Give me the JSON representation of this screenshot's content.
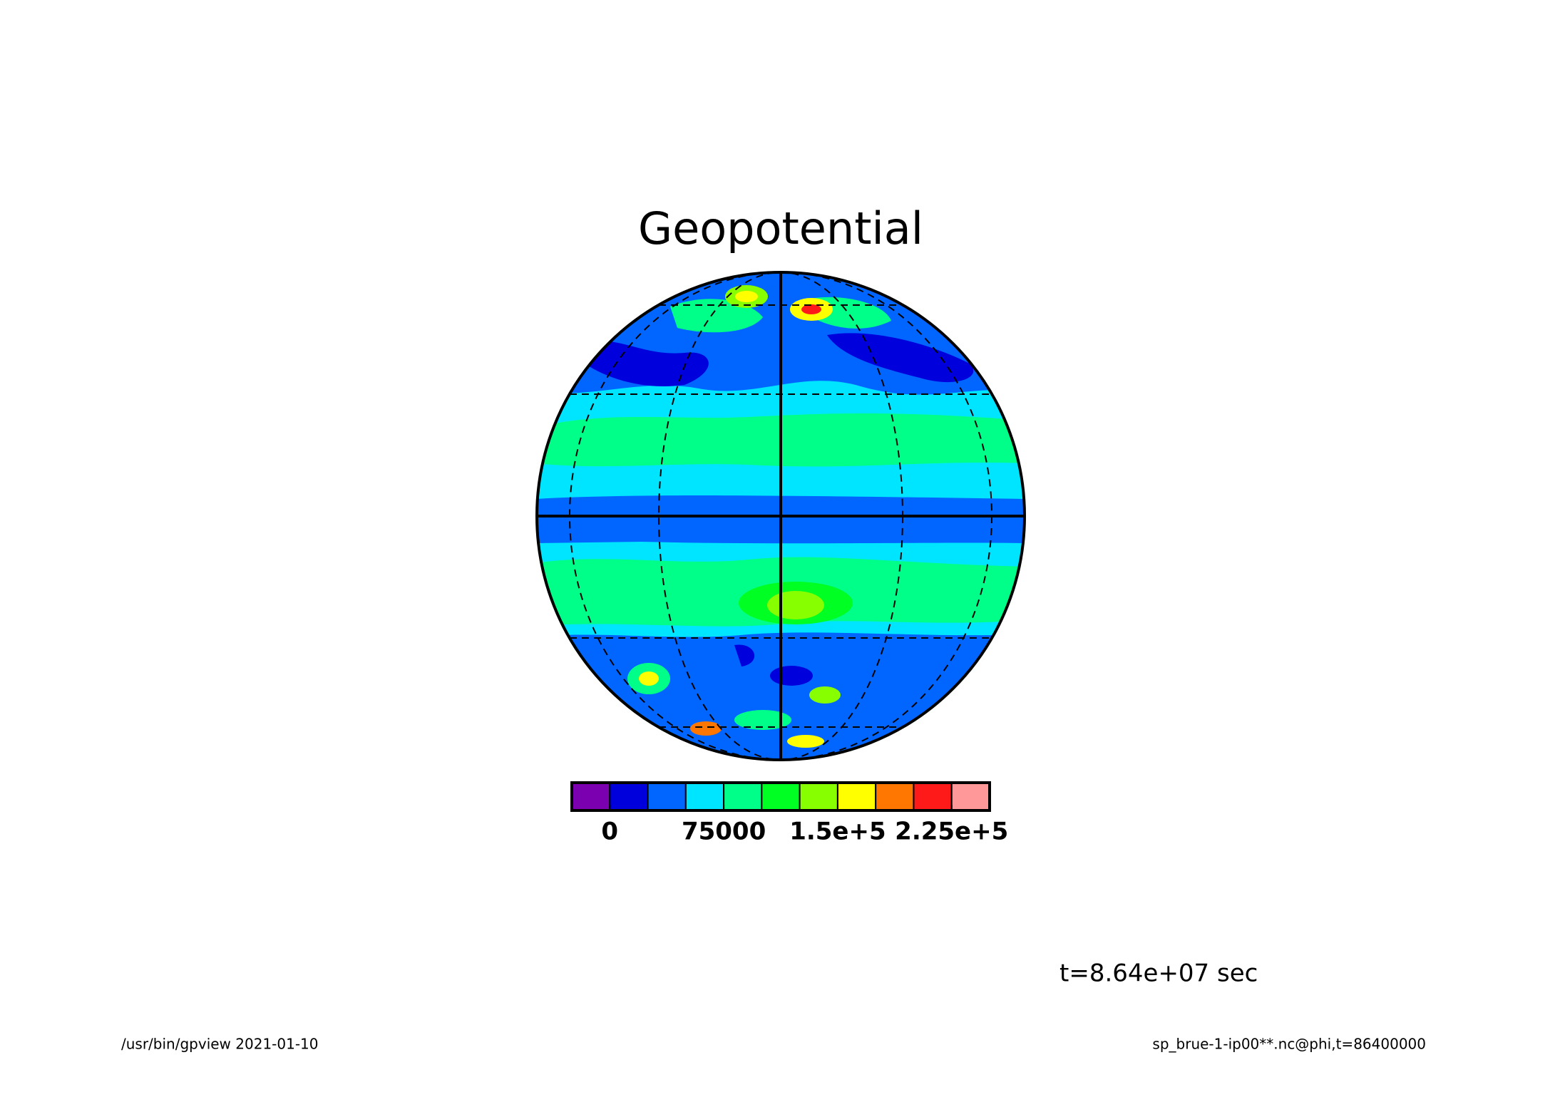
{
  "chart_data": {
    "type": "contour-globe",
    "title": "Geopotential",
    "colorbar_colors": [
      "#7a00b0",
      "#0000dd",
      "#0066ff",
      "#00e5ff",
      "#00ff88",
      "#00ff22",
      "#88ff00",
      "#ffff00",
      "#ff7700",
      "#ff1a1a",
      "#ff9999"
    ],
    "xlim": [
      -25000,
      250000
    ],
    "xticks": [
      0,
      75000,
      {
        "value": 150000,
        "label": "1.5e+5"
      },
      {
        "value": 225000,
        "label": "2.25e+5"
      }
    ],
    "annotation": "t=8.64e+07 sec",
    "footer_left": "/usr/bin/gpview  2021-01-10",
    "footer_right": "sp_brue-1-ip00**.nc@phi,t=86400000"
  }
}
